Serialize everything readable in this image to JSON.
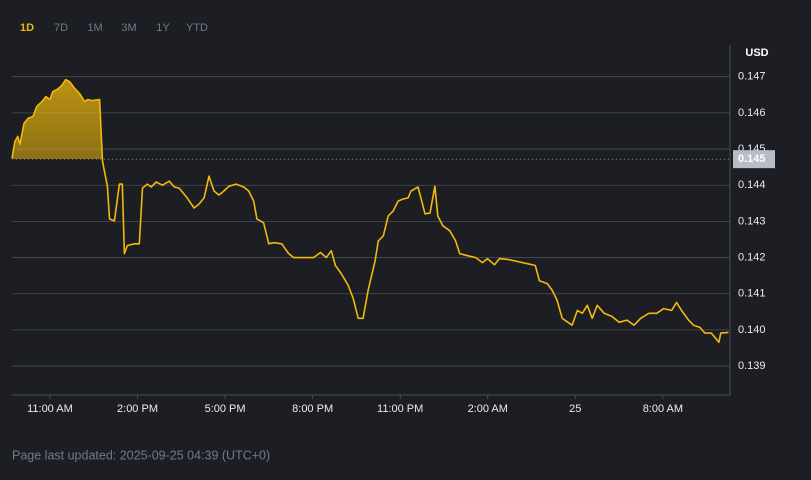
{
  "range_tabs": {
    "items": [
      "1D",
      "7D",
      "1M",
      "3M",
      "1Y",
      "YTD"
    ],
    "active": 0
  },
  "footer": "Page last updated: 2025-09-25 04:39 (UTC+0)",
  "chart_data": {
    "type": "line",
    "y_unit": "USD",
    "color": "#f0b90b",
    "grid": true,
    "area_above_reference": true,
    "reference_price": {
      "value": 0.14472,
      "label": "0.145"
    },
    "xlim": [
      9.7,
      34.3
    ],
    "xticks": [
      {
        "value": 11,
        "label": "11:00 AM"
      },
      {
        "value": 14,
        "label": "2:00 PM"
      },
      {
        "value": 17,
        "label": "5:00 PM"
      },
      {
        "value": 20,
        "label": "8:00 PM"
      },
      {
        "value": 23,
        "label": "11:00 PM"
      },
      {
        "value": 26,
        "label": "2:00 AM"
      },
      {
        "value": 29,
        "label": "25"
      },
      {
        "value": 32,
        "label": "8:00 AM"
      }
    ],
    "ylim": [
      0.1382,
      0.1476
    ],
    "yticks": [
      0.139,
      0.14,
      0.141,
      0.142,
      0.143,
      0.144,
      0.145,
      0.146,
      0.147
    ],
    "yticks_labels": [
      {
        "value": 0.14,
        "label": "0.140"
      }
    ],
    "x": [
      9.7,
      9.8,
      9.9,
      9.97,
      10.11,
      10.25,
      10.42,
      10.55,
      10.72,
      10.86,
      11.0,
      11.1,
      11.23,
      11.4,
      11.54,
      11.68,
      11.85,
      12.02,
      12.19,
      12.29,
      12.46,
      12.7,
      12.8,
      12.97,
      13.04,
      13.21,
      13.38,
      13.48,
      13.55,
      13.65,
      13.89,
      14.06,
      14.17,
      14.34,
      14.47,
      14.64,
      14.85,
      15.09,
      15.26,
      15.43,
      15.7,
      15.94,
      16.11,
      16.28,
      16.45,
      16.62,
      16.79,
      16.96,
      17.13,
      17.37,
      17.64,
      17.81,
      17.98,
      18.09,
      18.32,
      18.5,
      18.67,
      18.94,
      19.18,
      19.35,
      19.69,
      20.03,
      20.27,
      20.47,
      20.64,
      20.78,
      20.98,
      21.22,
      21.39,
      21.56,
      21.73,
      21.9,
      22.14,
      22.25,
      22.42,
      22.59,
      22.76,
      22.93,
      23.1,
      23.27,
      23.37,
      23.61,
      23.71,
      23.85,
      24.02,
      24.19,
      24.29,
      24.46,
      24.7,
      24.9,
      25.04,
      25.31,
      25.59,
      25.82,
      25.99,
      26.23,
      26.4,
      26.68,
      27.02,
      27.36,
      27.63,
      27.77,
      28.04,
      28.21,
      28.38,
      28.55,
      28.89,
      29.07,
      29.24,
      29.41,
      29.58,
      29.75,
      29.99,
      30.26,
      30.5,
      30.77,
      31.01,
      31.24,
      31.52,
      31.79,
      32.03,
      32.3,
      32.47,
      32.64,
      32.88,
      33.05,
      33.27,
      33.44,
      33.66,
      33.92,
      33.98,
      34.25
    ],
    "values": [
      0.14475,
      0.14521,
      0.14535,
      0.14513,
      0.14571,
      0.14585,
      0.1459,
      0.14618,
      0.14631,
      0.14645,
      0.14637,
      0.14659,
      0.14664,
      0.14675,
      0.14692,
      0.14686,
      0.14667,
      0.14653,
      0.14631,
      0.14637,
      0.14634,
      0.14637,
      0.14466,
      0.14397,
      0.14307,
      0.14301,
      0.14403,
      0.14403,
      0.14211,
      0.14233,
      0.14238,
      0.14238,
      0.14392,
      0.14403,
      0.14395,
      0.14409,
      0.144,
      0.14411,
      0.14395,
      0.14392,
      0.14365,
      0.14337,
      0.14348,
      0.14365,
      0.14425,
      0.14384,
      0.14373,
      0.14384,
      0.14397,
      0.14403,
      0.14395,
      0.14384,
      0.14356,
      0.14307,
      0.14296,
      0.14238,
      0.14241,
      0.14238,
      0.14211,
      0.142,
      0.142,
      0.142,
      0.14214,
      0.142,
      0.14219,
      0.14178,
      0.14156,
      0.14123,
      0.14087,
      0.14032,
      0.14032,
      0.14109,
      0.14191,
      0.14246,
      0.1426,
      0.14315,
      0.14329,
      0.14356,
      0.14362,
      0.14365,
      0.14384,
      0.14395,
      0.14365,
      0.14321,
      0.14323,
      0.14397,
      0.14315,
      0.14288,
      0.14274,
      0.14246,
      0.14211,
      0.14205,
      0.142,
      0.14186,
      0.14197,
      0.1418,
      0.14197,
      0.14195,
      0.14189,
      0.14183,
      0.14178,
      0.14136,
      0.14128,
      0.14109,
      0.14081,
      0.14032,
      0.14013,
      0.14054,
      0.14046,
      0.14068,
      0.14032,
      0.14068,
      0.14046,
      0.14037,
      0.14021,
      0.14027,
      0.14013,
      0.14032,
      0.14046,
      0.14046,
      0.14059,
      0.14054,
      0.14076,
      0.14054,
      0.14027,
      0.14013,
      0.14007,
      0.13991,
      0.13991,
      0.13966,
      0.13991,
      0.13993
    ]
  }
}
